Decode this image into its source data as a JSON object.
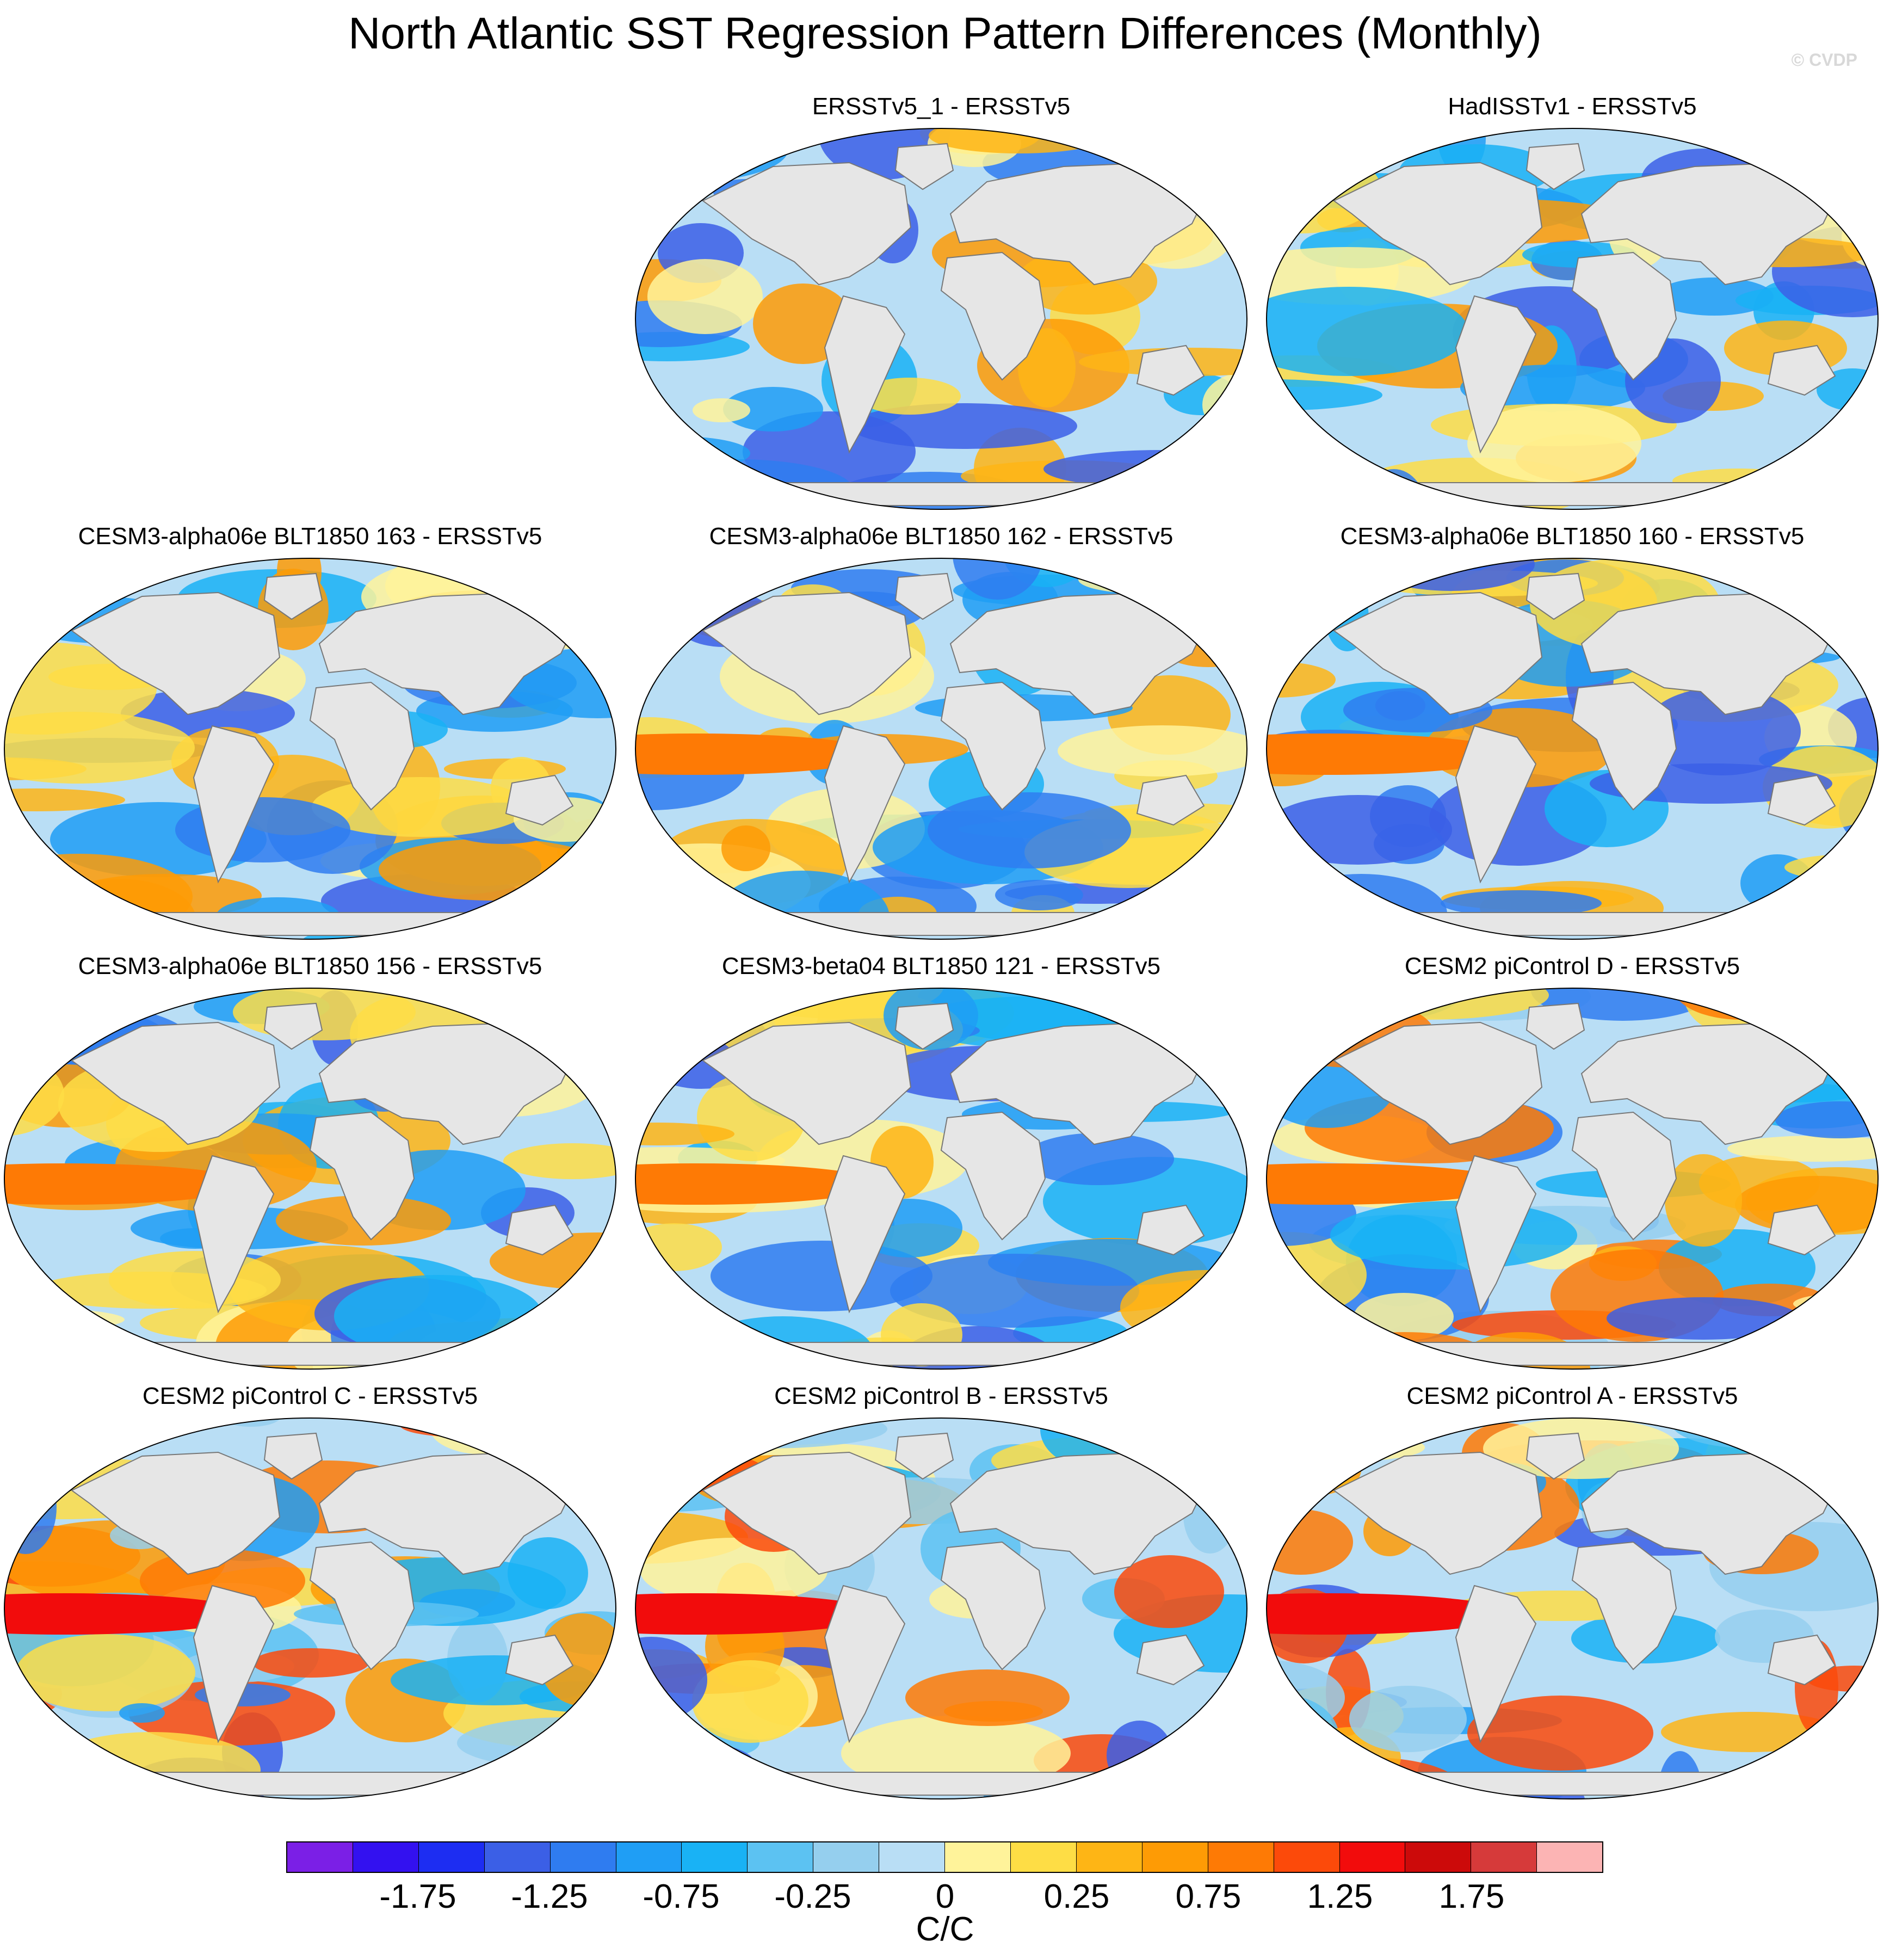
{
  "title": "North Atlantic SST Regression Pattern Differences (Monthly)",
  "copyright": "© CVDP",
  "panels": [
    {
      "label": "ERSSTv5_1 - ERSSTv5",
      "variant": 0
    },
    {
      "label": "HadISSTv1 - ERSSTv5",
      "variant": 1
    },
    {
      "label": "CESM3-alpha06e BLT1850 163 - ERSSTv5",
      "variant": 2
    },
    {
      "label": "CESM3-alpha06e BLT1850 162 - ERSSTv5",
      "variant": 3
    },
    {
      "label": "CESM3-alpha06e BLT1850 160 - ERSSTv5",
      "variant": 4
    },
    {
      "label": "CESM3-alpha06e BLT1850 156 - ERSSTv5",
      "variant": 5
    },
    {
      "label": "CESM3-beta04 BLT1850 121 - ERSSTv5",
      "variant": 6
    },
    {
      "label": "CESM2 piControl D - ERSSTv5",
      "variant": 7
    },
    {
      "label": "CESM2 piControl C - ERSSTv5",
      "variant": 8
    },
    {
      "label": "CESM2 piControl B - ERSSTv5",
      "variant": 9
    },
    {
      "label": "CESM2 piControl A - ERSSTv5",
      "variant": 10
    }
  ],
  "colorbar": {
    "colors": [
      "#7b1fe6",
      "#3311f0",
      "#1d2df2",
      "#3b5fe6",
      "#2f7cf0",
      "#1f9ef5",
      "#19b2f5",
      "#5cc2f2",
      "#95cfee",
      "#b9def5",
      "#fff39a",
      "#fedd45",
      "#feb515",
      "#fe9b05",
      "#fe7a05",
      "#fc4a0a",
      "#f20c0c",
      "#cc0a0a",
      "#d63a3a",
      "#fcb4b4"
    ],
    "tick_labels": [
      "-1.75",
      "-1.25",
      "-0.75",
      "-0.25",
      "0",
      "0.25",
      "0.75",
      "1.25",
      "1.75"
    ],
    "units": "C/C"
  }
}
